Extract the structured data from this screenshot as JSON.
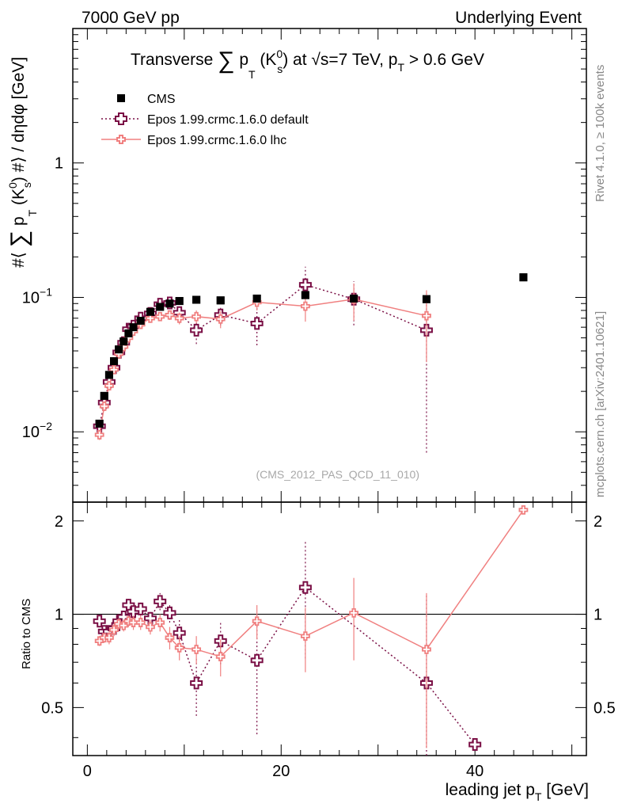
{
  "header": {
    "left": "7000 GeV pp",
    "right": "Underlying Event"
  },
  "title": {
    "part1": "Transverse ",
    "sum": "∑",
    "pT_p": " p",
    "pT_sub": "T",
    "k_open": " (K",
    "k_sup": "0",
    "k_sub": "s",
    "k_close": ")",
    "rest1": " at ",
    "sqrt": "√",
    "s_eq": "s=7 TeV, p",
    "pT2_sub": "T",
    "rest2": " > 0.6 GeV"
  },
  "side_labels": {
    "rivet": "Rivet 4.1.0, ≥ 100k events",
    "mcplots": "mcplots.cern.ch [arXiv:2401.10621]"
  },
  "analysis_tag": "(CMS_2012_PAS_QCD_11_010)",
  "axes": {
    "ylabel_main": "#⟨ ∑ p_T (K⁰_s) #⟩ / dηdφ [GeV]",
    "ylabel_main_parts": {
      "a": "#⟨ ",
      "sum": "∑",
      "p": " p",
      "T": "T",
      "k": " (K",
      "sup": "0",
      "sub": "s",
      "b": ") #⟩ / dηdφ [GeV]"
    },
    "ylabel_ratio": "Ratio to CMS",
    "xlabel": "leading jet p",
    "xlabel_sub": "T",
    "xlabel_unit": " [GeV]",
    "main_ticks": [
      {
        "value": 1,
        "base": "1",
        "exp": ""
      },
      {
        "value": 0.1,
        "base": "10",
        "exp": "−1"
      },
      {
        "value": 0.01,
        "base": "10",
        "exp": "−2"
      }
    ],
    "ratio_ticks": [
      {
        "value": 2,
        "label": "2"
      },
      {
        "value": 1,
        "label": "1"
      },
      {
        "value": 0.5,
        "label": "0.5"
      }
    ],
    "x_ticks": [
      {
        "value": 0,
        "label": "0"
      },
      {
        "value": 20,
        "label": "20"
      },
      {
        "value": 40,
        "label": "40"
      }
    ]
  },
  "legend": [
    {
      "label": "CMS",
      "color": "#000000",
      "style": "square"
    },
    {
      "label": "Epos 1.99.crmc.1.6.0 default",
      "color": "#7a0f45",
      "style": "dotted-cross"
    },
    {
      "label": "Epos 1.99.crmc.1.6.0 lhc",
      "color": "#f08080",
      "style": "solid-cross"
    }
  ],
  "chart_data": [
    {
      "type": "scatter",
      "panel": "main",
      "title": "Transverse ∑ pT (K0s) at √s=7 TeV, pT > 0.6 GeV",
      "xlabel": "leading jet pT [GeV]",
      "ylabel": "#⟨ ∑ pT (K0s) #⟩ / dηdφ [GeV]",
      "xlim": [
        -1.5,
        51.5
      ],
      "ylim": [
        0.003,
        10
      ],
      "yscale": "log",
      "series": [
        {
          "name": "CMS",
          "color": "#000000",
          "x": [
            1.25,
            1.75,
            2.25,
            2.75,
            3.25,
            3.75,
            4.25,
            4.75,
            5.5,
            6.5,
            7.5,
            8.5,
            9.5,
            11.25,
            13.75,
            17.5,
            22.5,
            27.5,
            35,
            45
          ],
          "y": [
            0.0115,
            0.0185,
            0.0265,
            0.0335,
            0.041,
            0.047,
            0.054,
            0.06,
            0.067,
            0.078,
            0.085,
            0.09,
            0.094,
            0.096,
            0.095,
            0.098,
            0.104,
            0.098,
            0.097,
            0.141
          ]
        },
        {
          "name": "Epos 1.99.crmc.1.6.0 default",
          "color": "#7a0f45",
          "x": [
            1.25,
            1.75,
            2.25,
            2.75,
            3.25,
            3.75,
            4.25,
            4.75,
            5.5,
            6.5,
            7.5,
            8.5,
            9.5,
            11.25,
            13.75,
            17.5,
            22.5,
            27.5,
            35
          ],
          "y": [
            0.011,
            0.0165,
            0.0235,
            0.03,
            0.039,
            0.046,
            0.058,
            0.061,
            0.07,
            0.076,
            0.089,
            0.091,
            0.077,
            0.057,
            0.074,
            0.064,
            0.124,
            0.097,
            0.057
          ],
          "y_err": [
            0.001,
            0.0015,
            0.002,
            0.002,
            0.002,
            0.002,
            0.003,
            0.003,
            0.004,
            0.004,
            0.006,
            0.006,
            0.008,
            0.012,
            0.012,
            0.02,
            0.045,
            0.035,
            0.05
          ]
        },
        {
          "name": "Epos 1.99.crmc.1.6.0 lhc",
          "color": "#f08080",
          "x": [
            1.25,
            1.75,
            2.25,
            2.75,
            3.25,
            3.75,
            4.25,
            4.75,
            5.5,
            6.5,
            7.5,
            8.5,
            9.5,
            11.25,
            13.75,
            17.5,
            22.5,
            27.5,
            35
          ],
          "y": [
            0.0095,
            0.0155,
            0.022,
            0.029,
            0.038,
            0.043,
            0.05,
            0.056,
            0.063,
            0.07,
            0.072,
            0.074,
            0.07,
            0.072,
            0.069,
            0.092,
            0.086,
            0.097,
            0.073
          ],
          "y_err": [
            0.0008,
            0.0012,
            0.0015,
            0.002,
            0.002,
            0.002,
            0.002,
            0.003,
            0.003,
            0.004,
            0.005,
            0.006,
            0.007,
            0.008,
            0.01,
            0.012,
            0.02,
            0.03,
            0.04
          ]
        }
      ]
    },
    {
      "type": "line",
      "panel": "ratio",
      "ylabel": "Ratio to CMS",
      "xlim": [
        -1.5,
        51.5
      ],
      "ylim": [
        0.35,
        2.3
      ],
      "yscale": "log",
      "reference": 1,
      "series": [
        {
          "name": "Epos 1.99.crmc.1.6.0 default",
          "color": "#7a0f45",
          "x": [
            1.25,
            1.75,
            2.25,
            2.75,
            3.25,
            3.75,
            4.25,
            4.75,
            5.5,
            6.5,
            7.5,
            8.5,
            9.5,
            11.25,
            13.75,
            17.5,
            22.5,
            35,
            40
          ],
          "y": [
            0.95,
            0.88,
            0.88,
            0.9,
            0.95,
            0.98,
            1.07,
            1.02,
            1.04,
            0.97,
            1.1,
            1.01,
            0.87,
            0.6,
            0.82,
            0.71,
            1.22,
            0.6,
            0.38
          ],
          "y_err": [
            0.03,
            0.04,
            0.04,
            0.04,
            0.04,
            0.04,
            0.05,
            0.05,
            0.05,
            0.05,
            0.07,
            0.07,
            0.1,
            0.13,
            0.13,
            0.3,
            0.5,
            0.55,
            0
          ]
        },
        {
          "name": "Epos 1.99.crmc.1.6.0 lhc",
          "color": "#f08080",
          "x": [
            1.25,
            1.75,
            2.25,
            2.75,
            3.25,
            3.75,
            4.25,
            4.75,
            5.5,
            6.5,
            7.5,
            8.5,
            9.5,
            11.25,
            13.75,
            17.5,
            22.5,
            27.5,
            35,
            45
          ],
          "y": [
            0.82,
            0.84,
            0.84,
            0.89,
            0.93,
            0.92,
            0.95,
            0.94,
            0.94,
            0.91,
            0.94,
            0.84,
            0.78,
            0.77,
            0.73,
            0.95,
            0.85,
            1.01,
            0.77,
            2.17
          ],
          "y_err": [
            0.03,
            0.03,
            0.04,
            0.04,
            0.04,
            0.04,
            0.04,
            0.05,
            0.05,
            0.05,
            0.06,
            0.07,
            0.07,
            0.08,
            0.1,
            0.12,
            0.2,
            0.3,
            0.4,
            0
          ]
        }
      ]
    }
  ]
}
